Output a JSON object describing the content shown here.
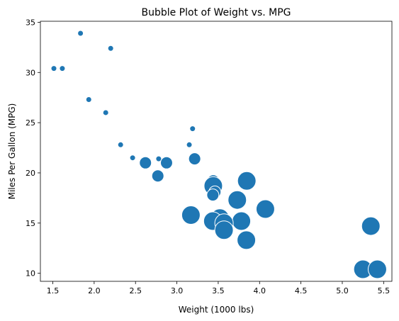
{
  "chart_data": {
    "type": "scatter",
    "title": "Bubble Plot of Weight vs. MPG",
    "xlabel": "Weight (1000 lbs)",
    "ylabel": "Miles Per Gallon (MPG)",
    "xlim": [
      1.35,
      5.6
    ],
    "ylim": [
      9.2,
      35.1
    ],
    "xticks": [
      1.5,
      2.0,
      2.5,
      3.0,
      3.5,
      4.0,
      4.5,
      5.0,
      5.5
    ],
    "xtick_labels": [
      "1.5",
      "2.0",
      "2.5",
      "3.0",
      "3.5",
      "4.0",
      "4.5",
      "5.0",
      "5.5"
    ],
    "yticks": [
      10,
      15,
      20,
      25,
      30,
      35
    ],
    "ytick_labels": [
      "10",
      "15",
      "20",
      "25",
      "30",
      "35"
    ],
    "grid": false,
    "color": "#1f77b4",
    "points": [
      {
        "x": 1.835,
        "y": 33.9,
        "size": 4
      },
      {
        "x": 2.2,
        "y": 32.4,
        "size": 4
      },
      {
        "x": 1.513,
        "y": 30.4,
        "size": 4
      },
      {
        "x": 1.615,
        "y": 30.4,
        "size": 4
      },
      {
        "x": 1.935,
        "y": 27.3,
        "size": 4
      },
      {
        "x": 2.14,
        "y": 26.0,
        "size": 4
      },
      {
        "x": 3.19,
        "y": 24.4,
        "size": 4
      },
      {
        "x": 2.32,
        "y": 22.8,
        "size": 4
      },
      {
        "x": 3.15,
        "y": 22.8,
        "size": 4
      },
      {
        "x": 2.465,
        "y": 21.5,
        "size": 4
      },
      {
        "x": 2.78,
        "y": 21.4,
        "size": 4
      },
      {
        "x": 3.215,
        "y": 21.4,
        "size": 6
      },
      {
        "x": 2.62,
        "y": 21.0,
        "size": 6
      },
      {
        "x": 2.875,
        "y": 21.0,
        "size": 6
      },
      {
        "x": 2.77,
        "y": 19.7,
        "size": 6
      },
      {
        "x": 3.44,
        "y": 19.2,
        "size": 6
      },
      {
        "x": 3.845,
        "y": 19.2,
        "size": 8
      },
      {
        "x": 3.44,
        "y": 18.7,
        "size": 8
      },
      {
        "x": 3.46,
        "y": 18.1,
        "size": 6
      },
      {
        "x": 3.435,
        "y": 17.8,
        "size": 6
      },
      {
        "x": 3.73,
        "y": 17.3,
        "size": 8
      },
      {
        "x": 4.07,
        "y": 16.4,
        "size": 8
      },
      {
        "x": 3.17,
        "y": 15.8,
        "size": 8
      },
      {
        "x": 3.52,
        "y": 15.5,
        "size": 8
      },
      {
        "x": 3.435,
        "y": 15.2,
        "size": 8
      },
      {
        "x": 3.78,
        "y": 15.2,
        "size": 8
      },
      {
        "x": 3.57,
        "y": 15.0,
        "size": 8
      },
      {
        "x": 5.345,
        "y": 14.7,
        "size": 8
      },
      {
        "x": 3.57,
        "y": 14.3,
        "size": 8
      },
      {
        "x": 3.84,
        "y": 13.3,
        "size": 8
      },
      {
        "x": 5.25,
        "y": 10.4,
        "size": 8
      },
      {
        "x": 5.424,
        "y": 10.4,
        "size": 8
      }
    ]
  }
}
